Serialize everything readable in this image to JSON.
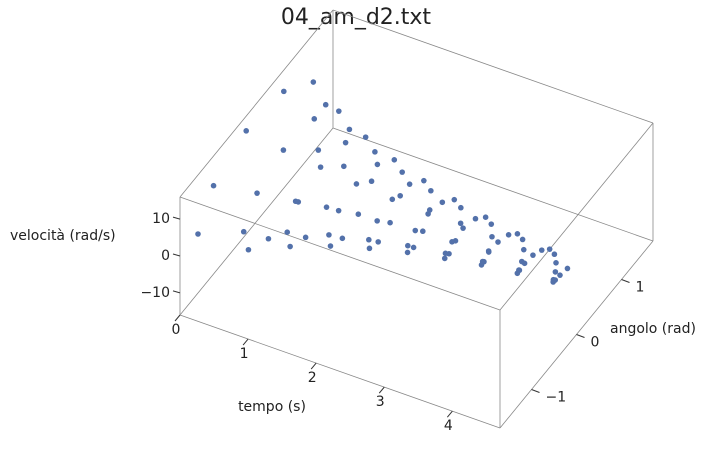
{
  "chart_data": {
    "type": "scatter3d",
    "title": "04_am_d2.txt",
    "x_label": "tempo (s)",
    "y_label": "angolo (rad)",
    "z_label": "velocità (rad/s)",
    "color": "#5371aa",
    "x": [
      0,
      0.05,
      0.1,
      0.15,
      0.2,
      0.25,
      0.3,
      0.35,
      0.4,
      0.45,
      0.5,
      0.55,
      0.6,
      0.65,
      0.7,
      0.75,
      0.8,
      0.85,
      0.9,
      0.95,
      1,
      1.05,
      1.1,
      1.15,
      1.2,
      1.25,
      1.3,
      1.35,
      1.4,
      1.45,
      1.5,
      1.55,
      1.6,
      1.65,
      1.7,
      1.75,
      1.8,
      1.85,
      1.9,
      1.95,
      2,
      2.05,
      2.1,
      2.15,
      2.2,
      2.25,
      2.3,
      2.35,
      2.4,
      2.45,
      2.5,
      2.55,
      2.6,
      2.65,
      2.7,
      2.75,
      2.8,
      2.85,
      2.9,
      2.95,
      3,
      3.05,
      3.1,
      3.15,
      3.2,
      3.25,
      3.3,
      3.35,
      3.4,
      3.45,
      3.5,
      3.55,
      3.6,
      3.65,
      3.7,
      3.75,
      3.8,
      3.85,
      3.9,
      3.95,
      4,
      4.05,
      4.1,
      4.15,
      4.2,
      4.25,
      4.3,
      4.35,
      4.4,
      4.45,
      4.5,
      4.55,
      4.6
    ],
    "y": [
      -1.3,
      -1.03,
      -0.38,
      0.38,
      0.96,
      1.16,
      0.92,
      0.34,
      -0.34,
      -0.86,
      -1.04,
      -0.82,
      -0.31,
      0.3,
      0.77,
      0.93,
      0.73,
      0.27,
      -0.27,
      -0.69,
      -0.83,
      -0.66,
      -0.24,
      0.24,
      0.61,
      0.74,
      0.59,
      0.22,
      -0.21,
      -0.55,
      -0.66,
      -0.52,
      -0.2,
      0.19,
      0.49,
      0.59,
      0.47,
      0.17,
      -0.17,
      -0.44,
      -0.53,
      -0.42,
      -0.16,
      0.15,
      0.39,
      0.47,
      0.37,
      0.14,
      -0.14,
      -0.35,
      -0.42,
      -0.33,
      -0.12,
      0.12,
      0.31,
      0.38,
      0.3,
      0.11,
      -0.11,
      -0.28,
      -0.34,
      -0.27,
      -0.1,
      0.1,
      0.25,
      0.3,
      0.24,
      0.09,
      -0.09,
      -0.22,
      -0.27,
      -0.21,
      -0.08,
      0.08,
      0.2,
      0.24,
      0.19,
      0.07,
      -0.07,
      -0.18,
      -0.21,
      -0.17,
      -0.06,
      0.06,
      0.16,
      0.19,
      0.15,
      0.06,
      -0.06,
      -0.14,
      -0.17,
      -0.14,
      -0.05
    ],
    "z": [
      0,
      9.4,
      14.9,
      14.6,
      8.8,
      0,
      -8.4,
      -13.3,
      -13,
      -7.9,
      0,
      7.5,
      11.9,
      11.6,
      7,
      0,
      -6.7,
      -10.6,
      -10.4,
      -6.3,
      0,
      6,
      9.5,
      9.3,
      5.6,
      0,
      -5.4,
      -8.5,
      -8.3,
      -5,
      0,
      4.8,
      7.6,
      7.4,
      4.5,
      0,
      -4.3,
      -6.8,
      -6.6,
      -4,
      0,
      3.8,
      6.1,
      5.9,
      3.6,
      0,
      -3.4,
      -5.4,
      -5.3,
      -3.2,
      0,
      3.1,
      4.8,
      4.7,
      2.9,
      0,
      -2.7,
      -4.3,
      -4.2,
      -2.6,
      0,
      2.4,
      3.9,
      3.8,
      2.3,
      0,
      -2.2,
      -3.5,
      -3.4,
      -2,
      0,
      2,
      3.1,
      3,
      1.8,
      0,
      -1.7,
      -2.8,
      -2.7,
      -1.6,
      0,
      1.6,
      2.5,
      2.4,
      1.5,
      0,
      -1.4,
      -2.2,
      -2.2,
      -1.3,
      0,
      1.2,
      2
    ],
    "xlim": [
      0,
      4.7
    ],
    "xticks": [
      0,
      1,
      2,
      3,
      4
    ],
    "ylim": [
      -1.7,
      1.7
    ],
    "yticks": [
      {
        "value": -1,
        "label": "−1"
      },
      0,
      1
    ],
    "zlim": [
      -16,
      16
    ],
    "zticks": [
      {
        "value": -10,
        "label": "−10"
      },
      0,
      10
    ]
  }
}
